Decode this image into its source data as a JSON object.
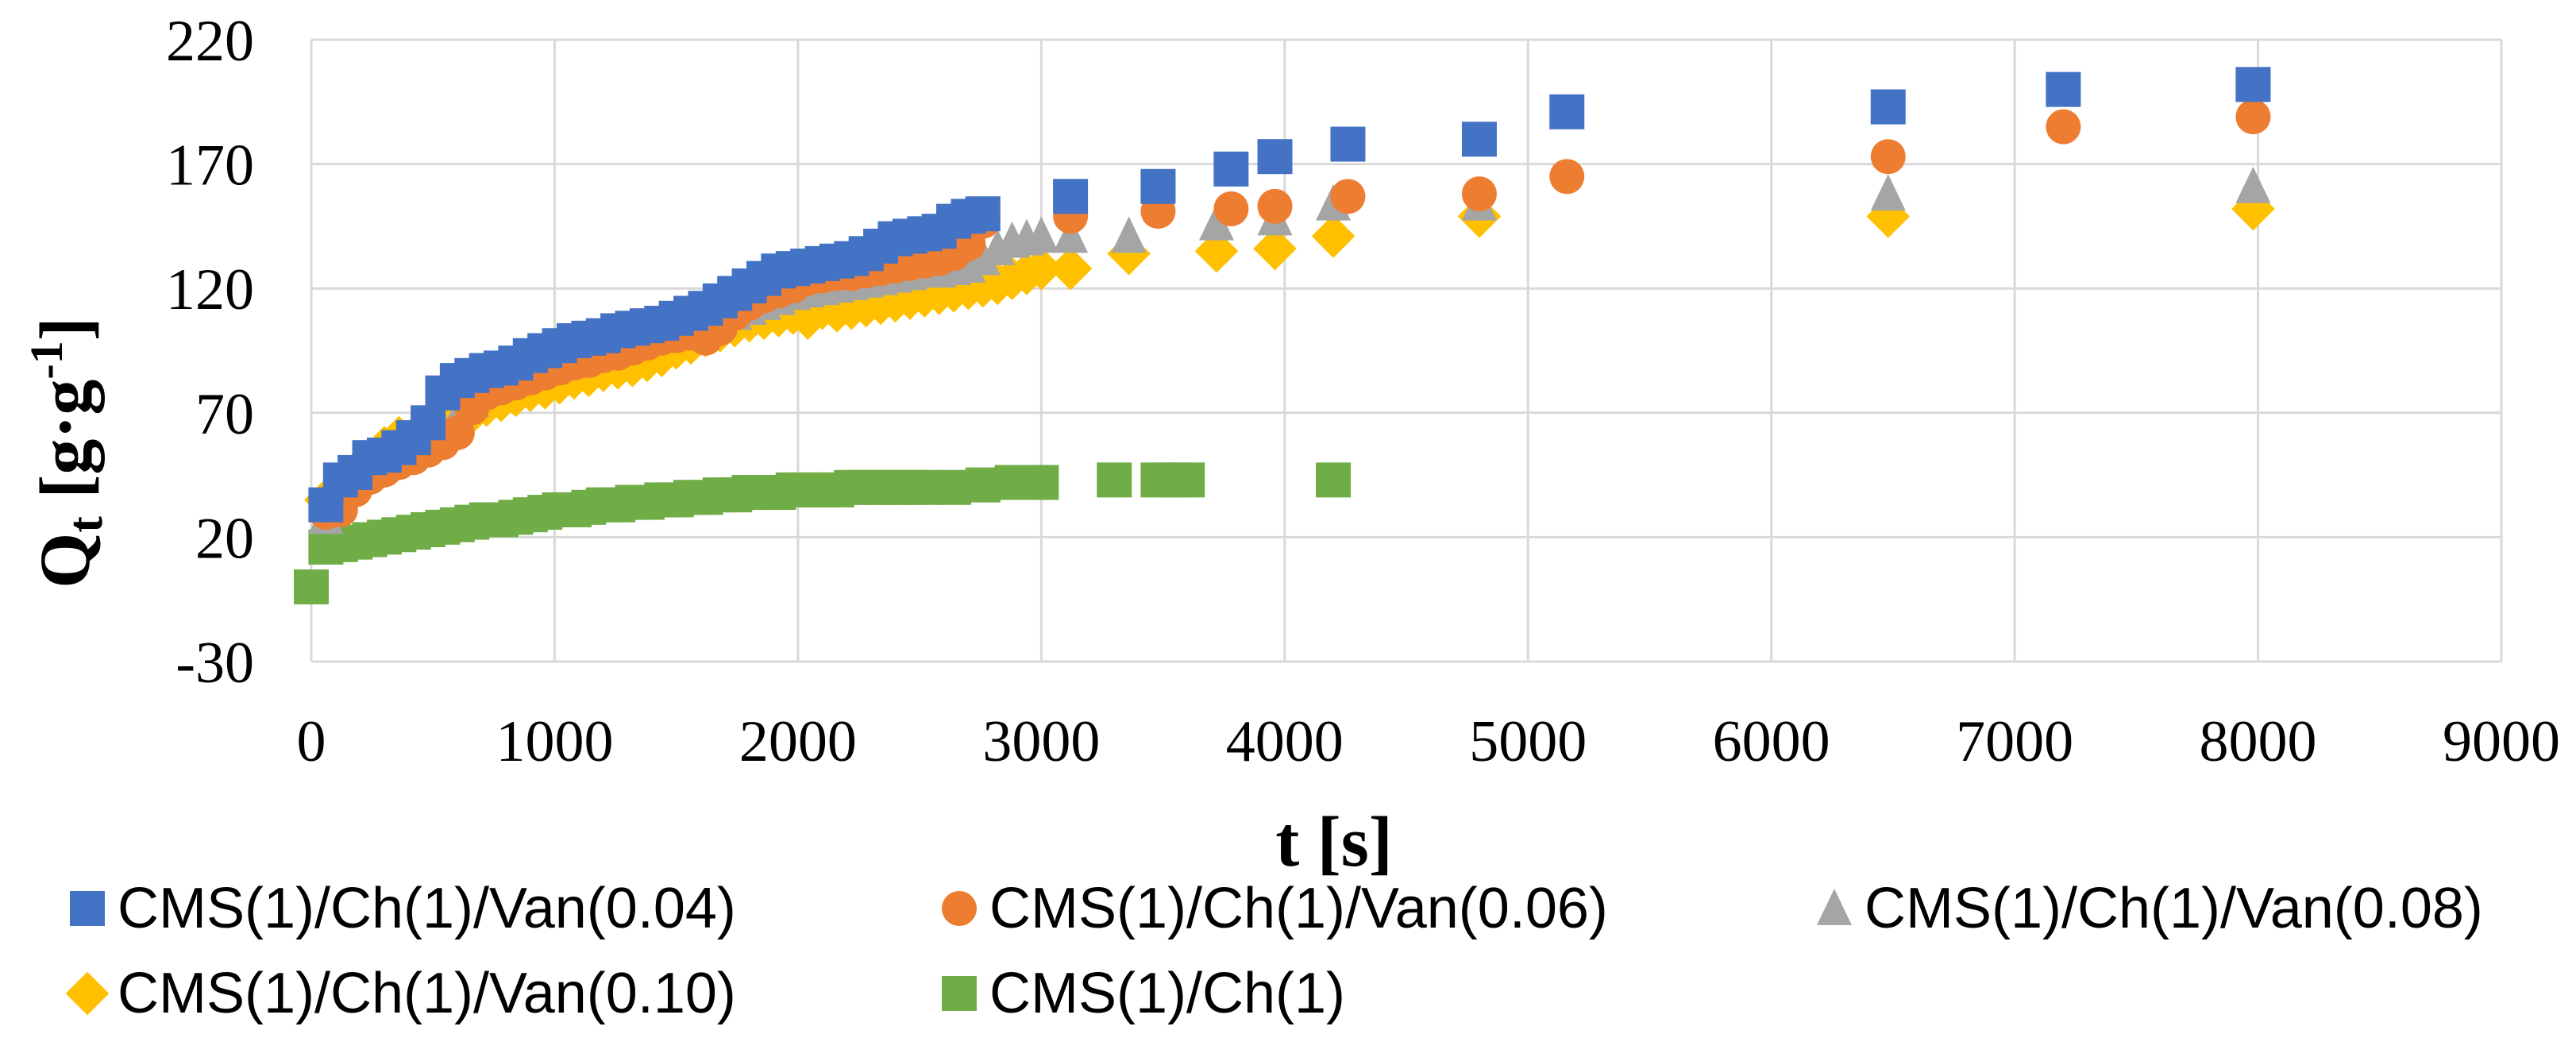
{
  "chart_data": {
    "type": "scatter",
    "xlabel": "t [s]",
    "ylabel_main": "Q",
    "ylabel_sub": "t",
    "ylabel_unit": " [g·g",
    "ylabel_sup": "-1",
    "ylabel_close": "]",
    "xlim": [
      0,
      9000
    ],
    "ylim": [
      -30,
      220
    ],
    "xticks": [
      0,
      1000,
      2000,
      3000,
      4000,
      5000,
      6000,
      7000,
      8000,
      9000
    ],
    "yticks": [
      -30,
      20,
      70,
      120,
      170,
      220
    ],
    "grid": true,
    "legend_position": "bottom",
    "series": [
      {
        "name": "CMS(1)/Ch(1)/Van(0.04)",
        "marker": "square",
        "color": "#4472C4",
        "points": [
          [
            60,
            33
          ],
          [
            120,
            43
          ],
          [
            180,
            46
          ],
          [
            240,
            52
          ],
          [
            300,
            53
          ],
          [
            360,
            56
          ],
          [
            420,
            60
          ],
          [
            480,
            66
          ],
          [
            540,
            78
          ],
          [
            600,
            83
          ],
          [
            660,
            85
          ],
          [
            720,
            87
          ],
          [
            780,
            88
          ],
          [
            840,
            90
          ],
          [
            900,
            93
          ],
          [
            960,
            95
          ],
          [
            1020,
            97
          ],
          [
            1080,
            99
          ],
          [
            1140,
            100
          ],
          [
            1200,
            101
          ],
          [
            1260,
            103
          ],
          [
            1320,
            104
          ],
          [
            1380,
            105
          ],
          [
            1440,
            106
          ],
          [
            1500,
            108
          ],
          [
            1560,
            110
          ],
          [
            1620,
            112
          ],
          [
            1680,
            115
          ],
          [
            1740,
            118
          ],
          [
            1800,
            121
          ],
          [
            1860,
            124
          ],
          [
            1920,
            127
          ],
          [
            1980,
            128
          ],
          [
            2040,
            129
          ],
          [
            2100,
            130
          ],
          [
            2160,
            131
          ],
          [
            2220,
            132
          ],
          [
            2280,
            134
          ],
          [
            2340,
            137
          ],
          [
            2400,
            140
          ],
          [
            2460,
            141
          ],
          [
            2520,
            142
          ],
          [
            2580,
            143
          ],
          [
            2640,
            147
          ],
          [
            2700,
            149
          ],
          [
            2760,
            150
          ],
          [
            3120,
            157
          ],
          [
            3480,
            161
          ],
          [
            3780,
            168
          ],
          [
            3960,
            173
          ],
          [
            4260,
            178
          ],
          [
            4800,
            180
          ],
          [
            5160,
            191
          ],
          [
            6480,
            193
          ],
          [
            7200,
            200
          ],
          [
            7980,
            202
          ]
        ]
      },
      {
        "name": "CMS(1)/Ch(1)/Van(0.06)",
        "marker": "circle",
        "color": "#ED7D31",
        "points": [
          [
            60,
            30
          ],
          [
            120,
            31
          ],
          [
            180,
            39
          ],
          [
            240,
            44
          ],
          [
            300,
            47
          ],
          [
            360,
            50
          ],
          [
            420,
            52
          ],
          [
            480,
            55
          ],
          [
            540,
            58
          ],
          [
            600,
            62
          ],
          [
            660,
            72
          ],
          [
            720,
            78
          ],
          [
            780,
            80
          ],
          [
            840,
            82
          ],
          [
            900,
            84
          ],
          [
            960,
            86
          ],
          [
            1020,
            88
          ],
          [
            1080,
            90
          ],
          [
            1140,
            91
          ],
          [
            1200,
            93
          ],
          [
            1260,
            94
          ],
          [
            1320,
            96
          ],
          [
            1380,
            98
          ],
          [
            1440,
            100
          ],
          [
            1500,
            101
          ],
          [
            1560,
            102
          ],
          [
            1620,
            100
          ],
          [
            1680,
            104
          ],
          [
            1740,
            110
          ],
          [
            1800,
            114
          ],
          [
            1860,
            117
          ],
          [
            1920,
            119
          ],
          [
            1980,
            121
          ],
          [
            2040,
            124
          ],
          [
            2100,
            125
          ],
          [
            2160,
            126
          ],
          [
            2220,
            126
          ],
          [
            2280,
            127
          ],
          [
            2340,
            128
          ],
          [
            2400,
            129
          ],
          [
            2460,
            130
          ],
          [
            2520,
            131
          ],
          [
            2580,
            132
          ],
          [
            2640,
            134
          ],
          [
            2700,
            138
          ],
          [
            2760,
            147
          ],
          [
            3120,
            149
          ],
          [
            3480,
            151
          ],
          [
            3780,
            152
          ],
          [
            3960,
            153
          ],
          [
            4260,
            157
          ],
          [
            4800,
            158
          ],
          [
            5160,
            165
          ],
          [
            6480,
            173
          ],
          [
            7200,
            185
          ],
          [
            7980,
            189
          ]
        ]
      },
      {
        "name": "CMS(1)/Ch(1)/Van(0.08)",
        "marker": "triangle",
        "color": "#A5A5A5",
        "points": [
          [
            60,
            28
          ],
          [
            120,
            38
          ],
          [
            180,
            44
          ],
          [
            240,
            48
          ],
          [
            300,
            52
          ],
          [
            360,
            55
          ],
          [
            420,
            58
          ],
          [
            480,
            61
          ],
          [
            540,
            64
          ],
          [
            600,
            68
          ],
          [
            660,
            75
          ],
          [
            720,
            80
          ],
          [
            780,
            83
          ],
          [
            840,
            86
          ],
          [
            900,
            88
          ],
          [
            960,
            90
          ],
          [
            1020,
            92
          ],
          [
            1080,
            94
          ],
          [
            1140,
            96
          ],
          [
            1200,
            98
          ],
          [
            1260,
            100
          ],
          [
            1320,
            101
          ],
          [
            1380,
            102
          ],
          [
            1440,
            103
          ],
          [
            1500,
            104
          ],
          [
            1560,
            105
          ],
          [
            1620,
            106
          ],
          [
            1680,
            108
          ],
          [
            1740,
            110
          ],
          [
            1800,
            112
          ],
          [
            1860,
            114
          ],
          [
            1920,
            116
          ],
          [
            1980,
            118
          ],
          [
            2040,
            119
          ],
          [
            2100,
            120
          ],
          [
            2160,
            121
          ],
          [
            2220,
            122
          ],
          [
            2280,
            123
          ],
          [
            2340,
            124
          ],
          [
            2400,
            125
          ],
          [
            2460,
            126
          ],
          [
            2520,
            127
          ],
          [
            2580,
            127
          ],
          [
            2640,
            128
          ],
          [
            2700,
            129
          ],
          [
            2760,
            132
          ],
          [
            2820,
            136
          ],
          [
            2880,
            139
          ],
          [
            2940,
            140
          ],
          [
            3000,
            141
          ],
          [
            3120,
            141
          ],
          [
            3360,
            141
          ],
          [
            3720,
            146
          ],
          [
            3960,
            148
          ],
          [
            4200,
            154
          ],
          [
            4800,
            154
          ],
          [
            6480,
            158
          ],
          [
            7980,
            161
          ]
        ]
      },
      {
        "name": "CMS(1)/Ch(1)/Van(0.10)",
        "marker": "diamond",
        "color": "#FFC000",
        "points": [
          [
            60,
            35
          ],
          [
            120,
            40
          ],
          [
            180,
            46
          ],
          [
            240,
            51
          ],
          [
            300,
            56
          ],
          [
            360,
            60
          ],
          [
            420,
            60
          ],
          [
            480,
            62
          ],
          [
            540,
            64
          ],
          [
            600,
            67
          ],
          [
            660,
            70
          ],
          [
            720,
            73
          ],
          [
            780,
            75
          ],
          [
            840,
            77
          ],
          [
            900,
            79
          ],
          [
            960,
            80
          ],
          [
            1020,
            82
          ],
          [
            1080,
            84
          ],
          [
            1140,
            85
          ],
          [
            1200,
            87
          ],
          [
            1260,
            88
          ],
          [
            1320,
            89
          ],
          [
            1380,
            91
          ],
          [
            1440,
            93
          ],
          [
            1500,
            96
          ],
          [
            1560,
            98
          ],
          [
            1620,
            101
          ],
          [
            1680,
            103
          ],
          [
            1740,
            105
          ],
          [
            1800,
            107
          ],
          [
            1860,
            108
          ],
          [
            1920,
            109
          ],
          [
            1980,
            110
          ],
          [
            2040,
            108
          ],
          [
            2100,
            112
          ],
          [
            2160,
            111
          ],
          [
            2220,
            112
          ],
          [
            2280,
            113
          ],
          [
            2340,
            114
          ],
          [
            2400,
            115
          ],
          [
            2460,
            116
          ],
          [
            2520,
            117
          ],
          [
            2580,
            118
          ],
          [
            2640,
            119
          ],
          [
            2700,
            120
          ],
          [
            2760,
            121
          ],
          [
            2820,
            122
          ],
          [
            2880,
            124
          ],
          [
            2940,
            126
          ],
          [
            3000,
            128
          ],
          [
            3120,
            128
          ],
          [
            3360,
            134
          ],
          [
            3720,
            135
          ],
          [
            3960,
            136
          ],
          [
            4200,
            141
          ],
          [
            4800,
            149
          ],
          [
            6480,
            149
          ],
          [
            7980,
            152
          ]
        ]
      },
      {
        "name": "CMS(1)/Ch(1)",
        "marker": "square",
        "color": "#70AD47",
        "points": [
          [
            0,
            0
          ],
          [
            60,
            16
          ],
          [
            120,
            17
          ],
          [
            180,
            18
          ],
          [
            240,
            19
          ],
          [
            300,
            20
          ],
          [
            360,
            21
          ],
          [
            420,
            22
          ],
          [
            480,
            23
          ],
          [
            540,
            24
          ],
          [
            600,
            25
          ],
          [
            660,
            26
          ],
          [
            720,
            27
          ],
          [
            780,
            27
          ],
          [
            840,
            28
          ],
          [
            900,
            29
          ],
          [
            960,
            30
          ],
          [
            1020,
            31
          ],
          [
            1080,
            31
          ],
          [
            1140,
            32
          ],
          [
            1200,
            33
          ],
          [
            1260,
            33
          ],
          [
            1320,
            34
          ],
          [
            1380,
            34
          ],
          [
            1440,
            35
          ],
          [
            1500,
            35
          ],
          [
            1560,
            36
          ],
          [
            1620,
            36
          ],
          [
            1680,
            37
          ],
          [
            1740,
            37
          ],
          [
            1800,
            38
          ],
          [
            1860,
            38
          ],
          [
            1920,
            38
          ],
          [
            1980,
            39
          ],
          [
            2040,
            39
          ],
          [
            2100,
            39
          ],
          [
            2160,
            39
          ],
          [
            2220,
            40
          ],
          [
            2280,
            40
          ],
          [
            2340,
            40
          ],
          [
            2400,
            40
          ],
          [
            2460,
            40
          ],
          [
            2520,
            40
          ],
          [
            2640,
            40
          ],
          [
            2760,
            41
          ],
          [
            2880,
            42
          ],
          [
            3000,
            42
          ],
          [
            3300,
            43
          ],
          [
            3480,
            43
          ],
          [
            3540,
            43
          ],
          [
            3600,
            43
          ],
          [
            4200,
            43
          ]
        ]
      }
    ]
  }
}
